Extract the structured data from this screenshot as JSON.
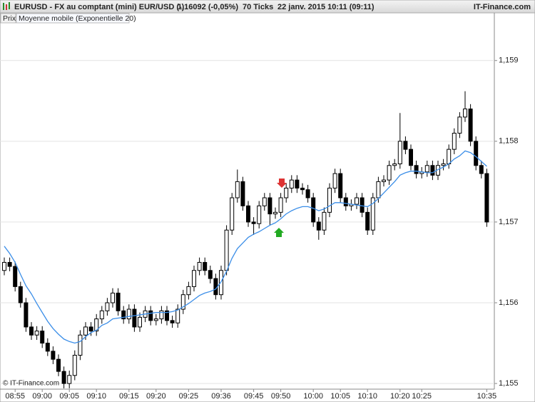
{
  "chart_data": {
    "type": "candlestick",
    "title": "EURUSD - FX au comptant (mini) EUR/USD (-)",
    "last_price": "1,16092 (-0,05%)",
    "ticks_info": "70 Ticks",
    "datetime": "22 janv. 2015 10:11 (09:11)",
    "source": "IT-Finance.com",
    "watermark": "© IT-Finance.com",
    "grid": true,
    "categories": [
      null,
      null,
      "08:55",
      null,
      null,
      null,
      null,
      "09:00",
      null,
      null,
      null,
      null,
      "09:05",
      null,
      null,
      null,
      null,
      "09:10",
      null,
      null,
      null,
      null,
      null,
      "09:15",
      null,
      null,
      null,
      null,
      "09:20",
      null,
      null,
      null,
      null,
      null,
      "09:25",
      null,
      null,
      null,
      null,
      null,
      "09:36",
      null,
      null,
      null,
      null,
      null,
      "09:45",
      null,
      null,
      null,
      null,
      "09:50",
      null,
      null,
      null,
      null,
      null,
      "10:00",
      null,
      null,
      null,
      null,
      "10:05",
      null,
      null,
      null,
      null,
      "10:10",
      null,
      null,
      null,
      null,
      null,
      "10:20",
      null,
      null,
      null,
      "10:25",
      null,
      null,
      null,
      null,
      null,
      null,
      null,
      null,
      null,
      null,
      null,
      "10:35"
    ],
    "ylim": [
      1.15493,
      1.15944
    ],
    "yticks": [
      {
        "value": 1.155,
        "label": "1,155"
      },
      {
        "value": 1.156,
        "label": "1,156"
      },
      {
        "value": 1.157,
        "label": "1,157"
      },
      {
        "value": 1.158,
        "label": "1,158"
      },
      {
        "value": 1.159,
        "label": "1,159"
      }
    ],
    "series": [
      {
        "name": "Prix",
        "type": "candlestick",
        "up_color": "#ffffff",
        "down_color": "#000000",
        "open": [
          1.1564,
          1.1565,
          1.15645,
          1.1562,
          1.156,
          1.1557,
          1.1556,
          1.15565,
          1.1555,
          1.1554,
          1.1553,
          1.15515,
          1.155,
          1.1551,
          1.15535,
          1.1556,
          1.1557,
          1.15565,
          1.1558,
          1.1559,
          1.156,
          1.15612,
          1.1559,
          1.1558,
          1.15592,
          1.1557,
          1.15582,
          1.1559,
          1.15578,
          1.1558,
          1.1559,
          1.15578,
          1.15575,
          1.15592,
          1.1561,
          1.1562,
          1.1564,
          1.1565,
          1.1564,
          1.1563,
          1.1561,
          1.1564,
          1.1569,
          1.1573,
          1.1575,
          1.1572,
          1.157,
          1.15698,
          1.1572,
          1.1573,
          1.1571,
          1.15712,
          1.1573,
          1.15742,
          1.15752,
          1.15742,
          1.1574,
          1.1573,
          1.157,
          1.1569,
          1.15712,
          1.15742,
          1.1576,
          1.1573,
          1.1572,
          1.15722,
          1.1573,
          1.15712,
          1.1569,
          1.1573,
          1.1575,
          1.15752,
          1.1577,
          1.15772,
          1.158,
          1.1579,
          1.1577,
          1.1576,
          1.15762,
          1.1577,
          1.15758,
          1.1577,
          1.15772,
          1.1579,
          1.1581,
          1.1583,
          1.1584,
          1.158,
          1.1577,
          1.1576
        ],
        "high": [
          1.15656,
          1.15656,
          1.15651,
          1.15626,
          1.15606,
          1.15576,
          1.15571,
          1.15571,
          1.15556,
          1.15546,
          1.15536,
          1.15521,
          1.15516,
          1.15541,
          1.15566,
          1.15576,
          1.15576,
          1.15586,
          1.15596,
          1.15606,
          1.15618,
          1.15618,
          1.15596,
          1.15598,
          1.15598,
          1.15588,
          1.15596,
          1.15596,
          1.15586,
          1.15596,
          1.15596,
          1.15584,
          1.15598,
          1.15616,
          1.15626,
          1.15646,
          1.15656,
          1.15656,
          1.15646,
          1.15636,
          1.15646,
          1.15696,
          1.15736,
          1.15765,
          1.15756,
          1.15726,
          1.15706,
          1.15726,
          1.15736,
          1.15736,
          1.15718,
          1.15736,
          1.15748,
          1.15758,
          1.15758,
          1.15748,
          1.15746,
          1.15736,
          1.15706,
          1.15718,
          1.15748,
          1.15766,
          1.15766,
          1.15736,
          1.15728,
          1.15736,
          1.15736,
          1.15718,
          1.15736,
          1.15756,
          1.15758,
          1.15776,
          1.15778,
          1.15835,
          1.15806,
          1.15796,
          1.15776,
          1.15768,
          1.15776,
          1.15776,
          1.15776,
          1.15778,
          1.15796,
          1.15816,
          1.15836,
          1.15862,
          1.15846,
          1.15806,
          1.15776,
          1.15766
        ],
        "low": [
          1.15634,
          1.15639,
          1.15614,
          1.15594,
          1.15564,
          1.15554,
          1.15554,
          1.15544,
          1.15534,
          1.15524,
          1.15509,
          1.15494,
          1.15494,
          1.15504,
          1.15529,
          1.15554,
          1.15559,
          1.15559,
          1.15574,
          1.15584,
          1.15594,
          1.15584,
          1.15574,
          1.15574,
          1.15564,
          1.15564,
          1.15576,
          1.15572,
          1.15572,
          1.15574,
          1.15572,
          1.15569,
          1.15569,
          1.15586,
          1.15604,
          1.15614,
          1.15634,
          1.15634,
          1.15624,
          1.15604,
          1.15604,
          1.15634,
          1.15684,
          1.15724,
          1.15714,
          1.15694,
          1.15684,
          1.15692,
          1.15714,
          1.15696,
          1.15704,
          1.15706,
          1.15724,
          1.15736,
          1.15736,
          1.15734,
          1.15724,
          1.15694,
          1.15678,
          1.15684,
          1.15706,
          1.15736,
          1.15724,
          1.15714,
          1.15714,
          1.15716,
          1.15706,
          1.15684,
          1.15684,
          1.15724,
          1.15744,
          1.15746,
          1.15764,
          1.15766,
          1.15784,
          1.15764,
          1.15754,
          1.15754,
          1.15756,
          1.15752,
          1.15752,
          1.15764,
          1.15766,
          1.15784,
          1.15804,
          1.15824,
          1.15794,
          1.15764,
          1.15754,
          1.15694
        ],
        "close": [
          1.1565,
          1.15645,
          1.1562,
          1.156,
          1.1557,
          1.1556,
          1.15565,
          1.1555,
          1.1554,
          1.1553,
          1.15515,
          1.155,
          1.1551,
          1.15535,
          1.1556,
          1.1557,
          1.15565,
          1.1558,
          1.1559,
          1.156,
          1.15612,
          1.1559,
          1.1558,
          1.15592,
          1.1557,
          1.15582,
          1.1559,
          1.15578,
          1.1558,
          1.1559,
          1.15578,
          1.15575,
          1.15592,
          1.1561,
          1.1562,
          1.1564,
          1.1565,
          1.1564,
          1.1563,
          1.1561,
          1.1564,
          1.1569,
          1.1573,
          1.1575,
          1.1572,
          1.157,
          1.15698,
          1.1572,
          1.1573,
          1.1571,
          1.15712,
          1.1573,
          1.15742,
          1.15752,
          1.15742,
          1.1574,
          1.1573,
          1.157,
          1.1569,
          1.15712,
          1.15742,
          1.1576,
          1.1573,
          1.1572,
          1.15722,
          1.1573,
          1.15712,
          1.1569,
          1.1573,
          1.1575,
          1.15752,
          1.1577,
          1.15772,
          1.158,
          1.1579,
          1.1577,
          1.1576,
          1.15762,
          1.1577,
          1.15758,
          1.1577,
          1.15772,
          1.1579,
          1.1581,
          1.1583,
          1.1584,
          1.158,
          1.1577,
          1.1576,
          1.157
        ]
      },
      {
        "name": "Moyenne mobile (Exponentielle 20)",
        "type": "line",
        "color": "#3b8ee8",
        "values": [
          1.1567,
          1.15661,
          1.1565,
          1.15635,
          1.15621,
          1.15611,
          1.15599,
          1.15588,
          1.15577,
          1.15568,
          1.15561,
          1.15555,
          1.15552,
          1.1555,
          1.15552,
          1.15558,
          1.15563,
          1.15566,
          1.15572,
          1.15575,
          1.1558,
          1.15581,
          1.15582,
          1.15583,
          1.15584,
          1.15585,
          1.15586,
          1.15587,
          1.15588,
          1.15588,
          1.15588,
          1.15589,
          1.15591,
          1.15595,
          1.15599,
          1.15604,
          1.15609,
          1.15612,
          1.15614,
          1.15617,
          1.15626,
          1.15639,
          1.15655,
          1.15667,
          1.15674,
          1.15681,
          1.15685,
          1.15688,
          1.15692,
          1.15696,
          1.15699,
          1.15704,
          1.1571,
          1.15714,
          1.15717,
          1.15719,
          1.15719,
          1.15717,
          1.15714,
          1.15716,
          1.1572,
          1.15724,
          1.15724,
          1.15723,
          1.15722,
          1.15721,
          1.1572,
          1.15719,
          1.15723,
          1.15729,
          1.15736,
          1.15743,
          1.1575,
          1.15758,
          1.15761,
          1.15763,
          1.15763,
          1.15762,
          1.15761,
          1.15761,
          1.15765,
          1.15768,
          1.15772,
          1.15778,
          1.15782,
          1.15788,
          1.15786,
          1.15781,
          1.15775,
          1.15769
        ]
      }
    ]
  }
}
